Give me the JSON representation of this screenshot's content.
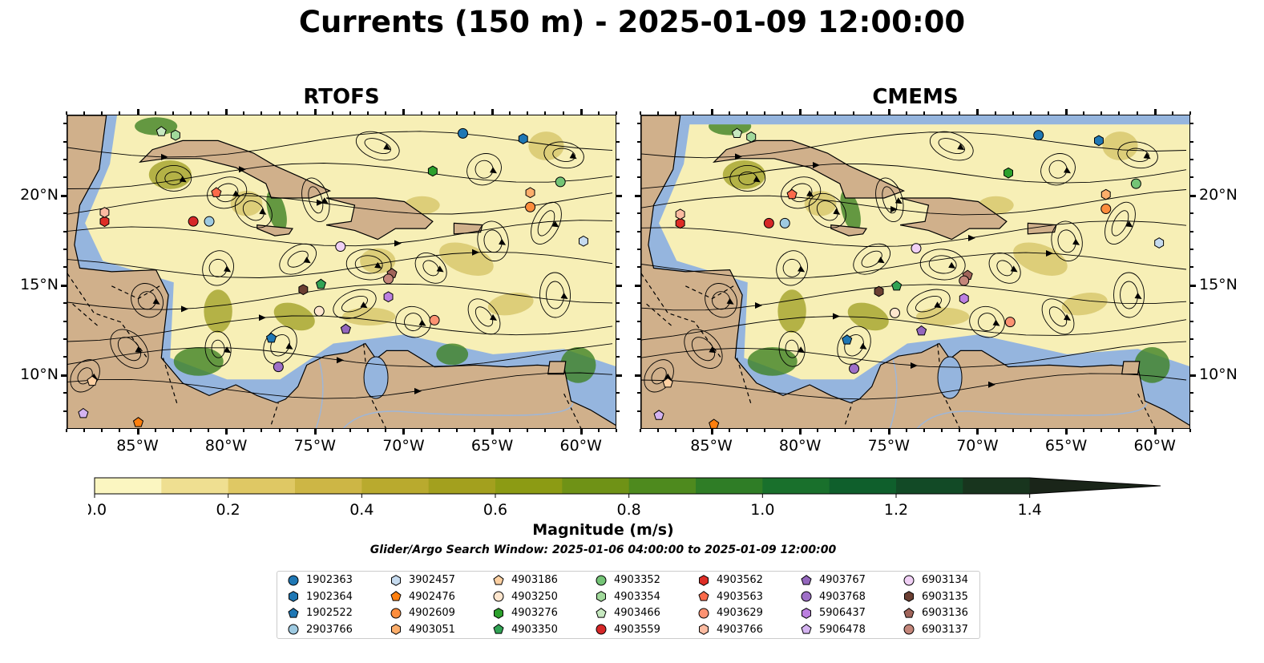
{
  "title": "Currents (150 m) - 2025-01-09 12:00:00",
  "panels": [
    {
      "title": "RTOFS"
    },
    {
      "title": "CMEMS"
    }
  ],
  "axes": {
    "x_ticks": [
      "85°W",
      "80°W",
      "75°W",
      "70°W",
      "65°W",
      "60°W"
    ],
    "x_tick_values": [
      -85,
      -80,
      -75,
      -70,
      -65,
      -60
    ],
    "y_ticks": [
      "20°N",
      "15°N",
      "10°N"
    ],
    "y_tick_values": [
      20,
      15,
      10
    ],
    "lon_range": [
      -89,
      -58
    ],
    "lat_range": [
      7,
      24.5
    ]
  },
  "colorbar": {
    "label": "Magnitude (m/s)",
    "ticks": [
      "0.0",
      "0.2",
      "0.4",
      "0.6",
      "0.8",
      "1.0",
      "1.2",
      "1.4"
    ],
    "tick_values": [
      0,
      0.2,
      0.4,
      0.6,
      0.8,
      1.0,
      1.2,
      1.4
    ],
    "range": [
      0,
      1.5
    ],
    "extend": "max",
    "colors": [
      "#fbf6c1",
      "#efdf91",
      "#dfc864",
      "#cdb645",
      "#b9aa2e",
      "#a3a01e",
      "#8c9b14",
      "#6f9216",
      "#4e8a1e",
      "#2f7d26",
      "#19702c",
      "#0f5f2c",
      "#124a26",
      "#18351e",
      "#1a2519"
    ]
  },
  "colors": {
    "ocean": "#95b5de",
    "land": "#d0b08b",
    "current_low": "#f7efb6",
    "current_mid": "#c9bd57",
    "current_high": "#3d7f22",
    "streamline": "#000000"
  },
  "search_window": "Glider/Argo Search Window: 2025-01-06 04:00:00 to 2025-01-09 12:00:00",
  "chart_data": {
    "type": "map",
    "title": "Currents (150 m) - 2025-01-09 12:00:00",
    "variable": "current magnitude (m/s) with streamlines",
    "panels": [
      "RTOFS",
      "CMEMS"
    ],
    "xlabel": "",
    "ylabel": "",
    "legend_placement": "bottom-center",
    "floats": [
      {
        "id": "1902363",
        "marker": "circle",
        "color": "#1f77b4",
        "lon": -66.7,
        "lat": 23.5
      },
      {
        "id": "1902364",
        "marker": "hexagon",
        "color": "#1f77b4",
        "lon": -63.3,
        "lat": 23.2
      },
      {
        "id": "1902522",
        "marker": "pentagon",
        "color": "#1f77b4",
        "lon": -77.5,
        "lat": 12.1
      },
      {
        "id": "2903766",
        "marker": "circle",
        "color": "#9ecae1",
        "lon": -81.0,
        "lat": 18.6
      },
      {
        "id": "3902457",
        "marker": "hexagon",
        "color": "#c6dbef",
        "lon": -59.9,
        "lat": 17.5
      },
      {
        "id": "4902476",
        "marker": "pentagon",
        "color": "#ff7f0e",
        "lon": -85.0,
        "lat": 7.4
      },
      {
        "id": "4902609",
        "marker": "circle",
        "color": "#fd8d3c",
        "lon": -62.9,
        "lat": 19.4
      },
      {
        "id": "4903051",
        "marker": "hexagon",
        "color": "#fdae6b",
        "lon": -62.9,
        "lat": 20.2
      },
      {
        "id": "4903186",
        "marker": "pentagon",
        "color": "#fdd0a2",
        "lon": -87.6,
        "lat": 9.7
      },
      {
        "id": "4903250",
        "marker": "circle",
        "color": "#fee6ce",
        "lon": -74.8,
        "lat": 13.6
      },
      {
        "id": "4903276",
        "marker": "hexagon",
        "color": "#2ca02c",
        "lon": -68.4,
        "lat": 21.4
      },
      {
        "id": "4903350",
        "marker": "pentagon",
        "color": "#31a354",
        "lon": -74.7,
        "lat": 15.1
      },
      {
        "id": "4903352",
        "marker": "circle",
        "color": "#74c476",
        "lon": -61.2,
        "lat": 20.8
      },
      {
        "id": "4903354",
        "marker": "hexagon",
        "color": "#a1d99b",
        "lon": -82.9,
        "lat": 23.4
      },
      {
        "id": "4903466",
        "marker": "pentagon",
        "color": "#c7e9c0",
        "lon": -83.7,
        "lat": 23.6
      },
      {
        "id": "4903559",
        "marker": "circle",
        "color": "#d62728",
        "lon": -81.9,
        "lat": 18.6
      },
      {
        "id": "4903562",
        "marker": "hexagon",
        "color": "#de2d26",
        "lon": -86.9,
        "lat": 18.6
      },
      {
        "id": "4903563",
        "marker": "pentagon",
        "color": "#fb6a4a",
        "lon": -80.6,
        "lat": 20.2
      },
      {
        "id": "4903629",
        "marker": "circle",
        "color": "#fc9272",
        "lon": -68.3,
        "lat": 13.1
      },
      {
        "id": "4903766",
        "marker": "hexagon",
        "color": "#fcbba1",
        "lon": -86.9,
        "lat": 19.1
      },
      {
        "id": "4903767",
        "marker": "pentagon",
        "color": "#9467bd",
        "lon": -73.3,
        "lat": 12.6
      },
      {
        "id": "4903768",
        "marker": "circle",
        "color": "#9e6fc7",
        "lon": -77.1,
        "lat": 10.5
      },
      {
        "id": "5906437",
        "marker": "hexagon",
        "color": "#bc80e0",
        "lon": -70.9,
        "lat": 14.4
      },
      {
        "id": "5906478",
        "marker": "pentagon",
        "color": "#d4b3f0",
        "lon": -88.1,
        "lat": 7.9
      },
      {
        "id": "6903134",
        "marker": "circle",
        "color": "#f0d0f5",
        "lon": -73.6,
        "lat": 17.2
      },
      {
        "id": "6903135",
        "marker": "hexagon",
        "color": "#6b3f32",
        "lon": -75.7,
        "lat": 14.8
      },
      {
        "id": "6903136",
        "marker": "pentagon",
        "color": "#a0645a",
        "lon": -70.7,
        "lat": 15.7
      },
      {
        "id": "6903137",
        "marker": "circle",
        "color": "#c4867a",
        "lon": -70.9,
        "lat": 15.4
      }
    ]
  }
}
